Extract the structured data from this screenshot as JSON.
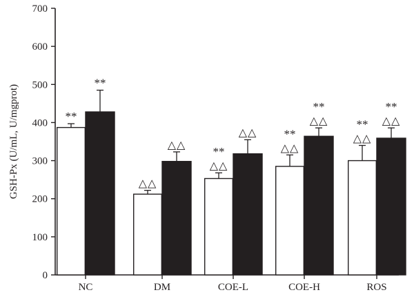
{
  "chart_data": {
    "type": "bar",
    "xlabel": "",
    "ylabel": "GSH-Px (U/mL, U/mgprot)",
    "ylim": [
      0,
      700
    ],
    "yticks": [
      0,
      100,
      200,
      300,
      400,
      500,
      600,
      700
    ],
    "categories": [
      "NC",
      "DM",
      "COE-L",
      "COE-H",
      "ROS"
    ],
    "series": [
      {
        "color": "#ffffff",
        "values": [
          387,
          212,
          253,
          285,
          300
        ],
        "errors": [
          10,
          10,
          15,
          30,
          40
        ],
        "annotations": [
          [
            "**"
          ],
          [
            "△△"
          ],
          [
            "**",
            "△△"
          ],
          [
            "**",
            "△△"
          ],
          [
            "**",
            "△△"
          ]
        ]
      },
      {
        "color": "#231f20",
        "values": [
          428,
          298,
          318,
          364,
          359
        ],
        "errors": [
          57,
          25,
          37,
          22,
          27
        ],
        "annotations": [
          [
            "**"
          ],
          [
            "△△"
          ],
          [
            "△△"
          ],
          [
            "**",
            "△△"
          ],
          [
            "**",
            "△△"
          ]
        ]
      }
    ],
    "grid": false,
    "legend": "none"
  }
}
